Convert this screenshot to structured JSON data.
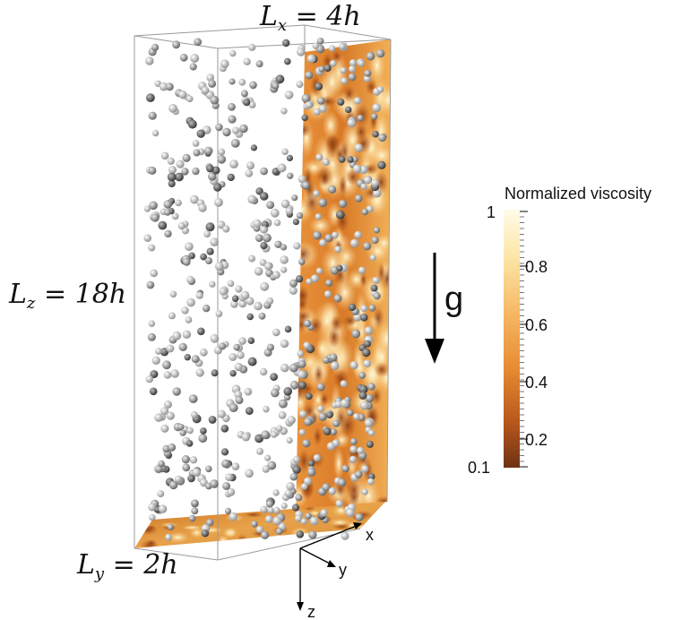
{
  "labels": {
    "lx": "L_x = 4h",
    "lz": "L_z = 18h",
    "ly": "L_y = 2h",
    "gravity": "g",
    "axis_x": "x",
    "axis_y": "y",
    "axis_z": "z"
  },
  "colorbar": {
    "title": "Normalized viscosity",
    "ticks": [
      "1",
      "0.8",
      "0.6",
      "0.4",
      "0.2",
      "0.1"
    ],
    "colors": [
      "#fff8dc",
      "#fde6a6",
      "#f5b360",
      "#e07c25",
      "#b5531a",
      "#6e3214"
    ]
  }
}
